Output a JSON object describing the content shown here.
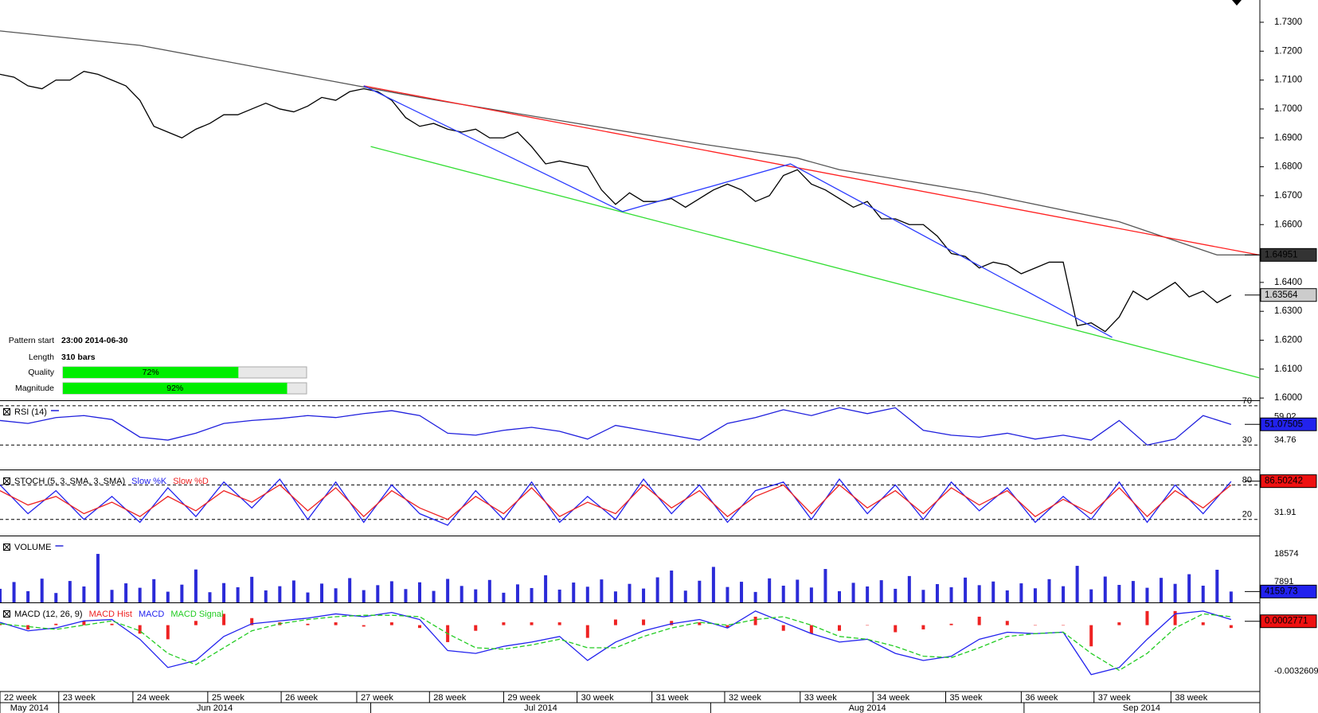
{
  "chart_data": [
    {
      "type": "line",
      "xlim": [
        0,
        90
      ],
      "ylim": [
        1.5995,
        1.7377
      ],
      "yticks": [
        {
          "value": 1.6,
          "label": "1.6000"
        },
        {
          "value": 1.61,
          "label": "1.6100"
        },
        {
          "value": 1.62,
          "label": "1.6200"
        },
        {
          "value": 1.63,
          "label": "1.6300"
        },
        {
          "value": 1.64,
          "label": "1.6400"
        },
        {
          "value": 1.65,
          "label": "1.6500"
        },
        {
          "value": 1.66,
          "label": "1.6600"
        },
        {
          "value": 1.67,
          "label": "1.6700"
        },
        {
          "value": 1.68,
          "label": "1.6800"
        },
        {
          "value": 1.69,
          "label": "1.6900"
        },
        {
          "value": 1.7,
          "label": "1.7000"
        },
        {
          "value": 1.71,
          "label": "1.7100"
        },
        {
          "value": 1.72,
          "label": "1.7200"
        },
        {
          "value": 1.73,
          "label": "1.7300"
        }
      ],
      "grid": false,
      "xticks": [
        {
          "value": 0,
          "label": "22 week"
        },
        {
          "value": 4.2,
          "label": "23 week"
        },
        {
          "value": 9.5,
          "label": "24 week"
        },
        {
          "value": 14.85,
          "label": "25 week"
        },
        {
          "value": 20.1,
          "label": "26 week"
        },
        {
          "value": 25.5,
          "label": "27 week"
        },
        {
          "value": 30.7,
          "label": "28 week"
        },
        {
          "value": 36.0,
          "label": "29 week"
        },
        {
          "value": 41.25,
          "label": "30 week"
        },
        {
          "value": 46.6,
          "label": "31 week"
        },
        {
          "value": 51.8,
          "label": "32 week"
        },
        {
          "value": 57.2,
          "label": "33 week"
        },
        {
          "value": 62.4,
          "label": "34 week"
        },
        {
          "value": 67.6,
          "label": "35 week"
        },
        {
          "value": 73.0,
          "label": "36 week"
        },
        {
          "value": 78.2,
          "label": "37 week"
        },
        {
          "value": 83.7,
          "label": "38 week"
        }
      ],
      "month_ticks": [
        {
          "value": 0,
          "label": "May 2014"
        },
        {
          "value": 4.2,
          "label": "Jun 2014"
        },
        {
          "value": 26.5,
          "label": "Jul 2014"
        },
        {
          "value": 50.8,
          "label": "Aug 2014"
        },
        {
          "value": 73.2,
          "label": "Sep 2014"
        }
      ],
      "series": [
        {
          "color": "#000000",
          "values": [
            1.712,
            1.711,
            1.708,
            1.707,
            1.71,
            1.71,
            1.713,
            1.712,
            1.71,
            1.708,
            1.703,
            1.694,
            1.692,
            1.69,
            1.693,
            1.695,
            1.698,
            1.698,
            1.7,
            1.702,
            1.7,
            1.699,
            1.701,
            1.704,
            1.703,
            1.706,
            1.707,
            1.706,
            1.703,
            1.697,
            1.694,
            1.695,
            1.693,
            1.692,
            1.693,
            1.69,
            1.69,
            1.692,
            1.687,
            1.681,
            1.682,
            1.681,
            1.68,
            1.672,
            1.667,
            1.671,
            1.668,
            1.668,
            1.669,
            1.666,
            1.669,
            1.672,
            1.674,
            1.672,
            1.668,
            1.67,
            1.677,
            1.679,
            1.674,
            1.672,
            1.669,
            1.666,
            1.668,
            1.662,
            1.662,
            1.66,
            1.66,
            1.656,
            1.65,
            1.649,
            1.645,
            1.647,
            1.646,
            1.643,
            1.645,
            1.647,
            1.647,
            1.625,
            1.626,
            1.623,
            1.628,
            1.637,
            1.634,
            1.637,
            1.64,
            1.635,
            1.637,
            1.633,
            1.6356
          ]
        },
        {
          "color": "#555555",
          "x": [
            0,
            10,
            20,
            30,
            40,
            50,
            57,
            60,
            70,
            80,
            87,
            90
          ],
          "values": [
            1.727,
            1.722,
            1.713,
            1.704,
            1.696,
            1.688,
            1.683,
            1.679,
            1.671,
            1.661,
            1.6495,
            1.6495
          ]
        },
        {
          "color": "#ff2020",
          "x": [
            26,
            90
          ],
          "values": [
            1.708,
            1.6495
          ]
        },
        {
          "color": "#33dd33",
          "x": [
            26.5,
            90
          ],
          "values": [
            1.687,
            1.607
          ]
        },
        {
          "color": "#2b3bff",
          "x": [
            26,
            44.5,
            56.5,
            79.5
          ],
          "values": [
            1.708,
            1.6645,
            1.681,
            1.621
          ]
        }
      ],
      "markers": [
        {
          "value": 1.64951,
          "label": "1.64951",
          "color": "#333333"
        },
        {
          "value": 1.63564,
          "label": "1.63564",
          "color": "#cccccc"
        }
      ],
      "pattern": [
        {
          "label": "Pattern start",
          "text": "23:00 2014-06-30"
        },
        {
          "label": "Length",
          "text": "310 bars"
        },
        {
          "label": "Quality",
          "value": 72,
          "value_label": "72%"
        },
        {
          "label": "Magnitude",
          "value": 92,
          "value_label": "92%"
        }
      ]
    },
    {
      "type": "line",
      "title": "RSI (14)",
      "xlim": [
        0,
        45
      ],
      "ylim": [
        5,
        74
      ],
      "yticks": [
        30,
        70
      ],
      "grid": true,
      "series": [
        {
          "color": "#1f1fdd",
          "values": [
            55,
            52,
            58,
            60,
            56,
            38,
            35,
            42,
            52,
            55,
            57,
            60,
            58,
            62,
            65,
            60,
            42,
            40,
            45,
            48,
            44,
            36,
            50,
            45,
            40,
            35,
            52,
            58,
            66,
            60,
            68,
            62,
            68,
            45,
            40,
            38,
            42,
            36,
            40,
            35,
            55,
            30,
            36,
            60,
            51
          ]
        }
      ],
      "markers": [
        {
          "value": 59.02,
          "label": "59.02"
        },
        {
          "value": 34.76,
          "label": "34.76"
        },
        {
          "value": 51.07505,
          "label": "51.07505",
          "color": "#2222ee"
        }
      ]
    },
    {
      "type": "line",
      "title": "STOCH (5, 3, SMA, 3, SMA)",
      "xlim": [
        0,
        45
      ],
      "ylim": [
        -8,
        104
      ],
      "yticks": [
        20,
        80
      ],
      "grid": true,
      "series": [
        {
          "name": "Slow %K",
          "color": "#2222ee",
          "values": [
            80,
            30,
            70,
            20,
            60,
            15,
            75,
            25,
            85,
            40,
            90,
            20,
            85,
            15,
            80,
            30,
            10,
            70,
            20,
            85,
            15,
            60,
            20,
            90,
            30,
            80,
            15,
            70,
            85,
            20,
            90,
            30,
            80,
            20,
            85,
            35,
            75,
            15,
            60,
            20,
            85,
            15,
            80,
            30,
            86
          ]
        },
        {
          "name": "Slow %D",
          "color": "#ee2222",
          "values": [
            70,
            45,
            60,
            30,
            50,
            25,
            60,
            35,
            70,
            50,
            80,
            35,
            75,
            25,
            70,
            40,
            20,
            60,
            30,
            75,
            25,
            50,
            30,
            80,
            40,
            70,
            25,
            60,
            80,
            30,
            80,
            40,
            70,
            30,
            75,
            45,
            70,
            25,
            55,
            30,
            75,
            25,
            70,
            40,
            80
          ]
        }
      ],
      "markers": [
        {
          "value": 86.50242,
          "label": "86.50242",
          "color": "#ee1111"
        },
        {
          "value": 31.91,
          "label": "31.91"
        }
      ]
    },
    {
      "type": "bar",
      "title": "VOLUME",
      "xlim": [
        0,
        90
      ],
      "ylim": [
        0,
        25000
      ],
      "series": [
        {
          "color": "#2b2bd8",
          "values": [
            5200,
            7800,
            4300,
            9100,
            3600,
            8200,
            6100,
            18574,
            4800,
            7300,
            5600,
            8900,
            4100,
            6800,
            12600,
            3900,
            7400,
            5800,
            9800,
            4600,
            6200,
            8400,
            3800,
            7200,
            5400,
            9300,
            4700,
            6600,
            8100,
            5100,
            7700,
            4400,
            9000,
            6300,
            5000,
            8600,
            3700,
            6900,
            5500,
            10400,
            4900,
            7600,
            6000,
            8800,
            4200,
            7100,
            5300,
            9600,
            12200,
            4500,
            8300,
            13600,
            5900,
            7900,
            4000,
            9200,
            6400,
            8700,
            5700,
            12800,
            4300,
            7500,
            6100,
            8500,
            5200,
            10100,
            4800,
            7000,
            5800,
            9500,
            6600,
            8000,
            4600,
            7300,
            5400,
            8900,
            6200,
            14000,
            5000,
            9900,
            6700,
            8200,
            5600,
            9400,
            7100,
            10800,
            6400,
            12500,
            4159.73
          ]
        }
      ],
      "markers": [
        {
          "value": 18574,
          "label": "18574"
        },
        {
          "value": 7891,
          "label": "7891"
        },
        {
          "value": 4159.73,
          "label": "4159.73",
          "color": "#2222ee"
        }
      ]
    },
    {
      "type": "line",
      "title": "MACD (12, 26, 9)",
      "xlim": [
        0,
        45
      ],
      "ylim": [
        -0.0047,
        0.0015
      ],
      "series": [
        {
          "name": "MACD Hist",
          "color": "#ee2222",
          "style": "bar",
          "values": [
            0.0001,
            -0.0003,
            0.0001,
            0.0003,
            0.0001,
            -0.0006,
            -0.001,
            0.0003,
            0.0008,
            0.0005,
            0.0002,
            0.0001,
            0.0002,
            -0.0001,
            0.0002,
            -0.0002,
            -0.0012,
            -0.0004,
            0.0002,
            0.0002,
            0.0002,
            -0.0009,
            0.0004,
            0.0004,
            0.0003,
            0.0002,
            -0.0002,
            0.0006,
            -0.0004,
            -0.0006,
            -0.0004,
            0.0,
            -0.0005,
            -0.0003,
            0.0001,
            0.0006,
            0.0003,
            0.0,
            0.0,
            -0.0015,
            0.0002,
            0.001,
            0.001,
            0.0002,
            -0.0002
          ]
        },
        {
          "name": "MACD",
          "color": "#2222ee",
          "style": "line",
          "values": [
            0.0002,
            -0.0004,
            -0.0002,
            0.0003,
            0.0004,
            -0.001,
            -0.003,
            -0.0025,
            -0.0008,
            0.0001,
            0.0003,
            0.0005,
            0.0008,
            0.0006,
            0.0009,
            0.0004,
            -0.0018,
            -0.002,
            -0.0015,
            -0.0012,
            -0.0008,
            -0.0025,
            -0.0012,
            -0.0004,
            0.0001,
            0.0004,
            -0.0002,
            0.001,
            0.0002,
            -0.0006,
            -0.0012,
            -0.001,
            -0.002,
            -0.0025,
            -0.0022,
            -0.001,
            -0.0005,
            -0.0006,
            -0.0005,
            -0.0035,
            -0.003,
            -0.001,
            0.0008,
            0.001,
            0.0004
          ]
        },
        {
          "name": "MACD Signal",
          "color": "#22cc22",
          "style": "dashed",
          "values": [
            0.0001,
            -0.0001,
            -0.0003,
            0.0,
            0.0003,
            -0.0004,
            -0.002,
            -0.0028,
            -0.0016,
            -0.0004,
            0.0001,
            0.0004,
            0.0006,
            0.0007,
            0.0007,
            0.0006,
            -0.0006,
            -0.0016,
            -0.0017,
            -0.0014,
            -0.001,
            -0.0016,
            -0.0016,
            -0.0008,
            -0.0002,
            0.0002,
            0.0,
            0.0004,
            0.0006,
            0.0,
            -0.0008,
            -0.001,
            -0.0015,
            -0.0022,
            -0.0023,
            -0.0016,
            -0.0008,
            -0.0006,
            -0.0005,
            -0.002,
            -0.0032,
            -0.002,
            -0.0002,
            0.0008,
            0.0006
          ]
        }
      ],
      "markers": [
        {
          "value": 0.0002771,
          "label": "0.0002771",
          "color": "#ee1111"
        },
        {
          "value": -0.0032609,
          "label": "-0.0032609"
        }
      ]
    }
  ]
}
